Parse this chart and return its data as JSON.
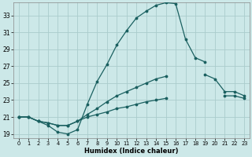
{
  "xlabel": "Humidex (Indice chaleur)",
  "bg_color": "#cce8e8",
  "grid_color": "#aacccc",
  "line_color": "#1a6060",
  "xlim": [
    -0.5,
    23.5
  ],
  "ylim": [
    18.5,
    34.5
  ],
  "xticks": [
    0,
    1,
    2,
    3,
    4,
    5,
    6,
    7,
    8,
    9,
    10,
    11,
    12,
    13,
    14,
    15,
    16,
    17,
    18,
    19,
    20,
    21,
    22,
    23
  ],
  "yticks": [
    19,
    21,
    23,
    25,
    27,
    29,
    31,
    33
  ],
  "line1_x": [
    0,
    1,
    2,
    3,
    4,
    5,
    6,
    7,
    8,
    9,
    10,
    11,
    12,
    13,
    14,
    15,
    16,
    17,
    18,
    19
  ],
  "line1_y": [
    21,
    21,
    20.5,
    20,
    19.2,
    19,
    19.5,
    22.5,
    25.2,
    27.2,
    29.5,
    31.2,
    32.7,
    33.5,
    34.2,
    34.5,
    34.4,
    30.2,
    28.0,
    27.5
  ],
  "line2_x": [
    0,
    1,
    2,
    3,
    4,
    5,
    6,
    7,
    8,
    9,
    10,
    11,
    12,
    13,
    14,
    15,
    16,
    17,
    18,
    19,
    20,
    21,
    22,
    23
  ],
  "line2_y": [
    21,
    21,
    20.5,
    20.3,
    20,
    20,
    20.5,
    21.3,
    22.0,
    22.8,
    23.5,
    24.0,
    24.5,
    25.0,
    25.5,
    25.8,
    null,
    null,
    null,
    26.0,
    25.5,
    24.0,
    24.0,
    23.5
  ],
  "line3_x": [
    0,
    1,
    2,
    3,
    4,
    5,
    6,
    7,
    8,
    9,
    10,
    11,
    12,
    13,
    14,
    15,
    16,
    17,
    18,
    19,
    20,
    21,
    22,
    23
  ],
  "line3_y": [
    21,
    21,
    20.5,
    20.3,
    20,
    20,
    20.5,
    21.0,
    21.3,
    21.6,
    22.0,
    22.2,
    22.5,
    22.8,
    23.0,
    23.2,
    null,
    null,
    null,
    null,
    null,
    23.5,
    23.5,
    23.2
  ]
}
